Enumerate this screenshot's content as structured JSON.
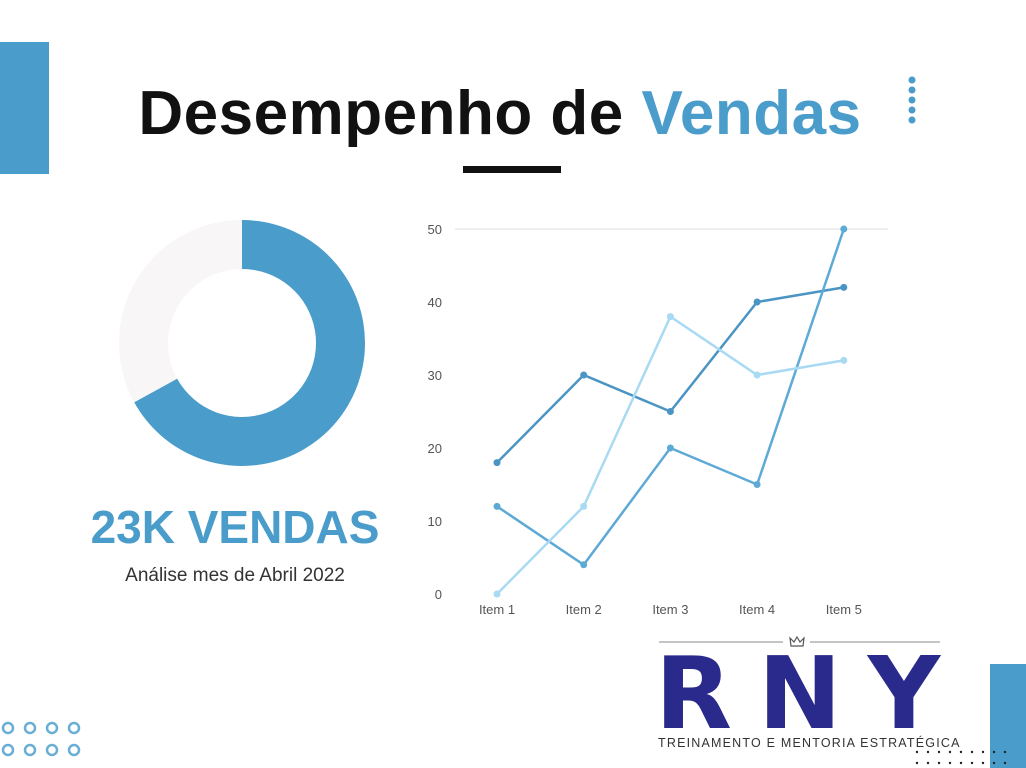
{
  "title": {
    "part1": "Desempenho de ",
    "part2": "Vendas"
  },
  "summary": {
    "sales": "23K VENDAS",
    "subtitle": "Análise mes de Abril 2022"
  },
  "logo": {
    "letters": "RNY",
    "tagline": "TREINAMENTO E MENTORIA ESTRATÉGICA"
  },
  "colors": {
    "accent": "#4a9ccb",
    "logo": "#2a2a8c",
    "donut_rest": "#f8f6f7"
  },
  "chart_data": [
    {
      "type": "pie",
      "donut": true,
      "values": [
        67,
        33
      ],
      "colors": [
        "#4a9ccb",
        "#f8f6f7"
      ]
    },
    {
      "type": "line",
      "categories": [
        "Item 1",
        "Item 2",
        "Item 3",
        "Item 4",
        "Item 5"
      ],
      "ylim": [
        0,
        50
      ],
      "yticks": [
        0,
        10,
        20,
        30,
        40,
        50
      ],
      "grid": "top-only",
      "series": [
        {
          "values": [
            18,
            30,
            25,
            40,
            42
          ],
          "color": "#4b95c4"
        },
        {
          "values": [
            12,
            4,
            20,
            15,
            50
          ],
          "color": "#5eaad6"
        },
        {
          "values": [
            0,
            12,
            38,
            30,
            32
          ],
          "color": "#a9daf3"
        }
      ]
    }
  ]
}
